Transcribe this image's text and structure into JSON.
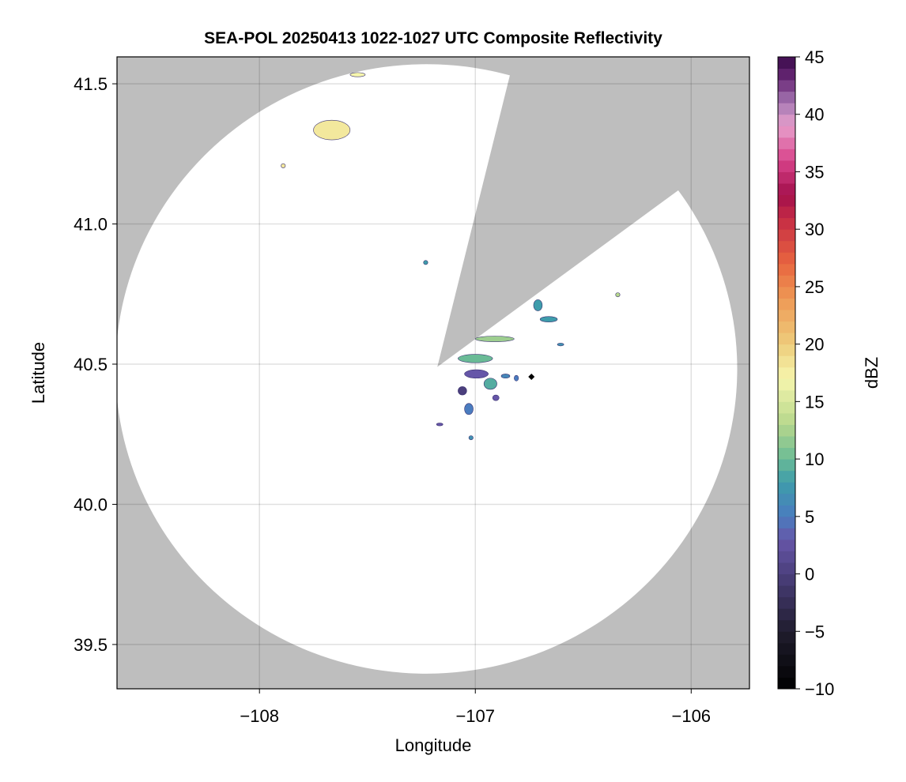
{
  "chart_data": {
    "type": "heatmap",
    "title": "SEA-POL 20250413 1022-1027 UTC Composite Reflectivity",
    "xlabel": "Longitude",
    "ylabel": "Latitude",
    "xlim": [
      -108.66,
      -105.73
    ],
    "ylim": [
      39.342,
      41.596
    ],
    "xticks": [
      -108,
      -107,
      -106
    ],
    "xtick_labels": [
      "−108",
      "−107",
      "−106"
    ],
    "yticks": [
      39.5,
      40.0,
      40.5,
      41.0,
      41.5
    ],
    "ytick_labels": [
      "39.5",
      "40.0",
      "40.5",
      "41.0",
      "41.5"
    ],
    "grid": true,
    "no_data_color": "#bebebe",
    "colorbar": {
      "label": "dBZ",
      "range": [
        -10,
        45
      ],
      "ticks": [
        -10,
        -5,
        0,
        5,
        10,
        15,
        20,
        25,
        30,
        35,
        40,
        45
      ],
      "tick_labels": [
        "−10",
        "−5",
        "0",
        "5",
        "10",
        "15",
        "20",
        "25",
        "30",
        "35",
        "40",
        "45"
      ],
      "bins": 55,
      "colormap_stops": [
        [
          -10,
          "#000000"
        ],
        [
          -5,
          "#201d2e"
        ],
        [
          0,
          "#4b3f7d"
        ],
        [
          3,
          "#6656a8"
        ],
        [
          5,
          "#4a7cbf"
        ],
        [
          8,
          "#3e9cab"
        ],
        [
          10,
          "#6abb96"
        ],
        [
          13,
          "#b6d78c"
        ],
        [
          17,
          "#f6f6ad"
        ],
        [
          20,
          "#eecd7c"
        ],
        [
          24,
          "#ee9855"
        ],
        [
          27,
          "#e8653f"
        ],
        [
          31,
          "#c42b45"
        ],
        [
          33,
          "#a30f4c"
        ],
        [
          36,
          "#d8428a"
        ],
        [
          39,
          "#e8a0cc"
        ],
        [
          41,
          "#a779b4"
        ],
        [
          43,
          "#6b2a78"
        ],
        [
          45,
          "#3a0a4a"
        ]
      ]
    },
    "radar": {
      "lon": -106.74,
      "lat": 40.455,
      "coverage_center": [
        -107.176,
        40.49
      ],
      "coverage_radius_deg": [
        1.44,
        1.087
      ],
      "blocked_sector_edges": [
        [
          -106.84,
          41.53
        ],
        [
          -106.06,
          41.12
        ]
      ]
    },
    "echoes": [
      {
        "lon": [
          -107.58,
          -107.51
        ],
        "lat": [
          41.525,
          41.54
        ],
        "dbz": 17
      },
      {
        "lon": [
          -107.75,
          -107.58
        ],
        "lat": [
          41.3,
          41.37
        ],
        "dbz": 18
      },
      {
        "lon": [
          -107.9,
          -107.88
        ],
        "lat": [
          41.2,
          41.215
        ],
        "dbz": 18
      },
      {
        "lon": [
          -107.24,
          -107.22
        ],
        "lat": [
          40.855,
          40.87
        ],
        "dbz": 8
      },
      {
        "lon": [
          -106.35,
          -106.33
        ],
        "lat": [
          40.74,
          40.755
        ],
        "dbz": 13
      },
      {
        "lon": [
          -106.73,
          -106.69
        ],
        "lat": [
          40.69,
          40.73
        ],
        "dbz": 8
      },
      {
        "lon": [
          -106.7,
          -106.62
        ],
        "lat": [
          40.65,
          40.67
        ],
        "dbz": 8
      },
      {
        "lon": [
          -106.62,
          -106.59
        ],
        "lat": [
          40.565,
          40.575
        ],
        "dbz": 7
      },
      {
        "lon": [
          -107.0,
          -106.82
        ],
        "lat": [
          40.58,
          40.6
        ],
        "dbz": 12
      },
      {
        "lon": [
          -107.08,
          -106.92
        ],
        "lat": [
          40.505,
          40.535
        ],
        "dbz": 10
      },
      {
        "lon": [
          -107.05,
          -106.94
        ],
        "lat": [
          40.45,
          40.48
        ],
        "dbz": 3
      },
      {
        "lon": [
          -106.96,
          -106.9
        ],
        "lat": [
          40.41,
          40.45
        ],
        "dbz": 9
      },
      {
        "lon": [
          -106.88,
          -106.84
        ],
        "lat": [
          40.45,
          40.465
        ],
        "dbz": 6
      },
      {
        "lon": [
          -106.82,
          -106.8
        ],
        "lat": [
          40.44,
          40.46
        ],
        "dbz": 5
      },
      {
        "lon": [
          -107.08,
          -107.04
        ],
        "lat": [
          40.39,
          40.42
        ],
        "dbz": 0
      },
      {
        "lon": [
          -107.05,
          -107.01
        ],
        "lat": [
          40.32,
          40.36
        ],
        "dbz": 5
      },
      {
        "lon": [
          -107.18,
          -107.15
        ],
        "lat": [
          40.28,
          40.29
        ],
        "dbz": 3
      },
      {
        "lon": [
          -107.03,
          -107.01
        ],
        "lat": [
          40.23,
          40.245
        ],
        "dbz": 7
      },
      {
        "lon": [
          -106.92,
          -106.89
        ],
        "lat": [
          40.37,
          40.39
        ],
        "dbz": 3
      }
    ]
  }
}
